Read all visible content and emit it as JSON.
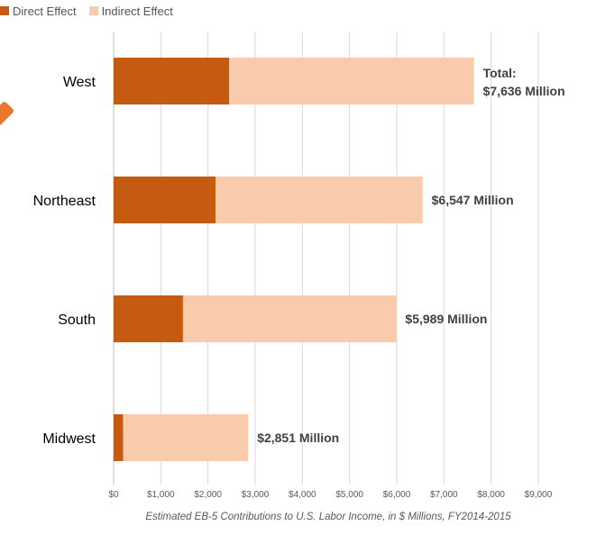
{
  "legend": [
    {
      "label": "Direct Effect",
      "color": "#C55A11"
    },
    {
      "label": "Indirect Effect",
      "color": "#F8CBAD"
    }
  ],
  "chart_data": {
    "type": "bar",
    "orientation": "horizontal",
    "stacked": true,
    "categories": [
      "West",
      "Northeast",
      "South",
      "Midwest"
    ],
    "series": [
      {
        "name": "Direct Effect",
        "color": "#C55A11",
        "values": [
          2450,
          2160,
          1470,
          200
        ]
      },
      {
        "name": "Indirect Effect",
        "color": "#F8CBAD",
        "values": [
          5186,
          4387,
          4519,
          2651
        ]
      }
    ],
    "totals": [
      7636,
      6547,
      5989,
      2851
    ],
    "data_labels": [
      [
        "Total:",
        "$7,636 Million"
      ],
      [
        "$6,547 Million"
      ],
      [
        "$5,989 Million"
      ],
      [
        "$2,851 Million"
      ]
    ],
    "xlim": [
      0,
      9000
    ],
    "x_ticks": [
      0,
      1000,
      2000,
      3000,
      4000,
      5000,
      6000,
      7000,
      8000,
      9000
    ],
    "x_tick_labels": [
      "$0",
      "$1,000",
      "$2,000",
      "$3,000",
      "$4,000",
      "$5,000",
      "$6,000",
      "$7,000",
      "$8,000",
      "$9,000"
    ],
    "xlabel": "Estimated EB-5 Contributions to U.S. Labor Income, in $ Millions, FY2014-2015",
    "grid": "vertical",
    "legend_position": "top-left"
  }
}
